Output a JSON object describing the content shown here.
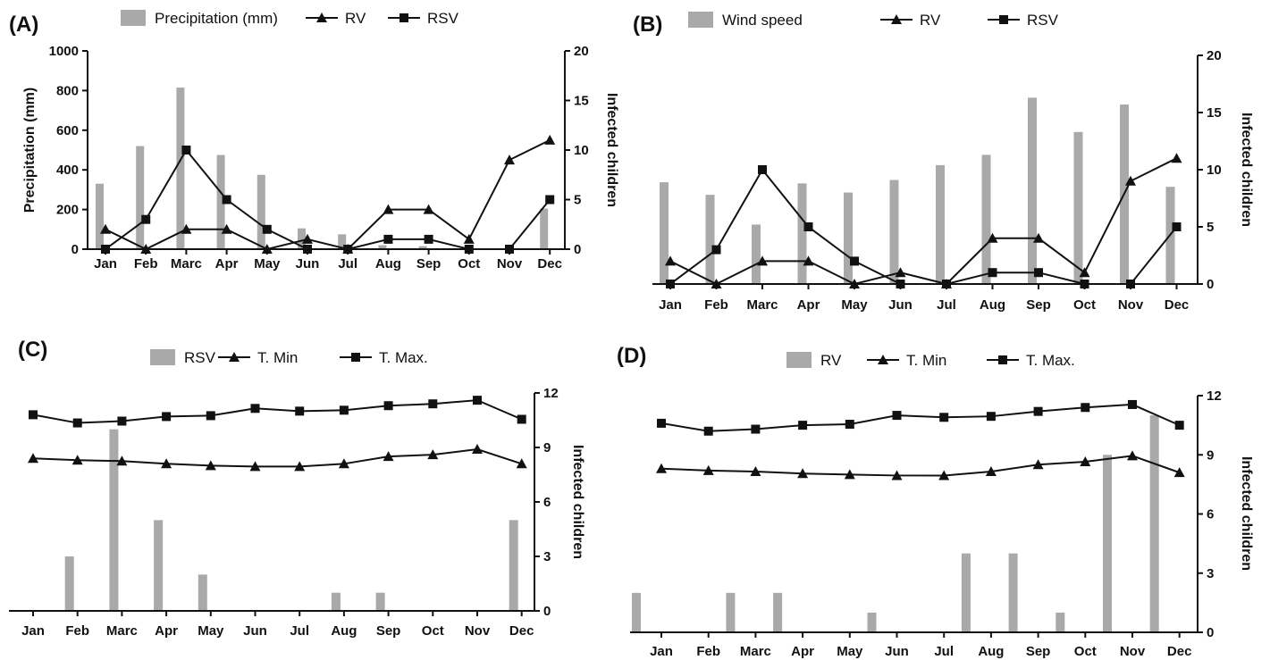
{
  "chart_data": [
    {
      "panel": "(A)",
      "type": "bar+line",
      "categories": [
        "Jan",
        "Feb",
        "Marc",
        "Apr",
        "May",
        "Jun",
        "Jul",
        "Aug",
        "Sep",
        "Oct",
        "Nov",
        "Dec"
      ],
      "ylabel_left": "Precipitation (mm)",
      "ylabel_right": "Infected children",
      "ylim_left": [
        0,
        1000
      ],
      "ylim_right": [
        0,
        20
      ],
      "yticks_left": [
        "0",
        "200",
        "400",
        "600",
        "800",
        "1000"
      ],
      "yticks_right": [
        "0",
        "5",
        "10",
        "15",
        "20"
      ],
      "legend": [
        "Precipitation (mm)",
        "RV",
        "RSV"
      ],
      "bars": {
        "name": "Precipitation (mm)",
        "axis": "left",
        "values": [
          330,
          520,
          815,
          475,
          375,
          105,
          75,
          20,
          15,
          5,
          5,
          205
        ]
      },
      "series": [
        {
          "name": "RV",
          "marker": "triangle",
          "axis": "right",
          "values": [
            2,
            0,
            2,
            2,
            0,
            1,
            0,
            4,
            4,
            1,
            9,
            11
          ]
        },
        {
          "name": "RSV",
          "marker": "square",
          "axis": "right",
          "values": [
            0,
            3,
            10,
            5,
            2,
            0,
            0,
            1,
            1,
            0,
            0,
            5
          ]
        }
      ]
    },
    {
      "panel": "(B)",
      "type": "bar+line",
      "categories": [
        "Jan",
        "Feb",
        "Marc",
        "Apr",
        "May",
        "Jun",
        "Jul",
        "Aug",
        "Sep",
        "Oct",
        "Nov",
        "Dec"
      ],
      "ylabel_left": "",
      "ylabel_right": "Infected children",
      "ylim_left": [
        0,
        20
      ],
      "ylim_right": [
        0,
        20
      ],
      "yticks_left": [],
      "yticks_right": [
        "0",
        "5",
        "10",
        "15",
        "20"
      ],
      "legend": [
        "Wind speed",
        "RV",
        "RSV"
      ],
      "bars": {
        "name": "Wind speed",
        "axis": "left",
        "values": [
          8.9,
          7.8,
          5.2,
          8.8,
          8.0,
          9.1,
          10.4,
          11.3,
          16.3,
          13.3,
          15.7,
          8.5
        ]
      },
      "series": [
        {
          "name": "RV",
          "marker": "triangle",
          "axis": "right",
          "values": [
            2,
            0,
            2,
            2,
            0,
            1,
            0,
            4,
            4,
            1,
            9,
            11
          ]
        },
        {
          "name": "RSV",
          "marker": "square",
          "axis": "right",
          "values": [
            0,
            3,
            10,
            5,
            2,
            0,
            0,
            1,
            1,
            0,
            0,
            5
          ]
        }
      ]
    },
    {
      "panel": "(C)",
      "type": "bar+line",
      "categories": [
        "Jan",
        "Feb",
        "Marc",
        "Apr",
        "May",
        "Jun",
        "Jul",
        "Aug",
        "Sep",
        "Oct",
        "Nov",
        "Dec"
      ],
      "ylabel_right": "Infected children",
      "ylim_right": [
        0,
        12
      ],
      "yticks_right": [
        "0",
        "3",
        "6",
        "9",
        "12"
      ],
      "legend": [
        "RSV",
        "T. Min",
        "T. Max."
      ],
      "bars": {
        "name": "RSV",
        "axis": "right",
        "values": [
          0,
          3,
          10,
          5,
          2,
          0,
          0,
          1,
          1,
          0,
          0,
          5
        ]
      },
      "series": [
        {
          "name": "T. Min",
          "marker": "triangle",
          "axis": "right",
          "values": [
            8.4,
            8.3,
            8.25,
            8.1,
            8.0,
            7.95,
            7.95,
            8.1,
            8.5,
            8.6,
            8.9,
            8.1
          ]
        },
        {
          "name": "T. Max.",
          "marker": "square",
          "axis": "right",
          "values": [
            10.8,
            10.35,
            10.45,
            10.7,
            10.75,
            11.15,
            11.0,
            11.05,
            11.3,
            11.4,
            11.6,
            10.55
          ]
        }
      ]
    },
    {
      "panel": "(D)",
      "type": "bar+line",
      "categories": [
        "Jan",
        "Feb",
        "Marc",
        "Apr",
        "May",
        "Jun",
        "Jul",
        "Aug",
        "Sep",
        "Oct",
        "Nov",
        "Dec"
      ],
      "ylabel_right": "Infected children",
      "ylim_right": [
        0,
        12
      ],
      "yticks_right": [
        "0",
        "3",
        "6",
        "9",
        "12"
      ],
      "legend": [
        "RV",
        "T. Min",
        "T. Max."
      ],
      "bars": {
        "name": "RV",
        "axis": "right",
        "values": [
          2,
          0,
          2,
          2,
          0,
          1,
          0,
          4,
          4,
          1,
          9,
          11
        ]
      },
      "series": [
        {
          "name": "T. Min",
          "marker": "triangle",
          "axis": "right",
          "values": [
            8.3,
            8.2,
            8.15,
            8.05,
            8.0,
            7.95,
            7.95,
            8.15,
            8.5,
            8.65,
            8.95,
            8.1
          ]
        },
        {
          "name": "T. Max.",
          "marker": "square",
          "axis": "right",
          "values": [
            10.6,
            10.2,
            10.3,
            10.5,
            10.55,
            11.0,
            10.9,
            10.95,
            11.2,
            11.4,
            11.55,
            10.5
          ]
        }
      ]
    }
  ],
  "colors": {
    "bar": "#a9a9a9",
    "line": "#111111"
  }
}
